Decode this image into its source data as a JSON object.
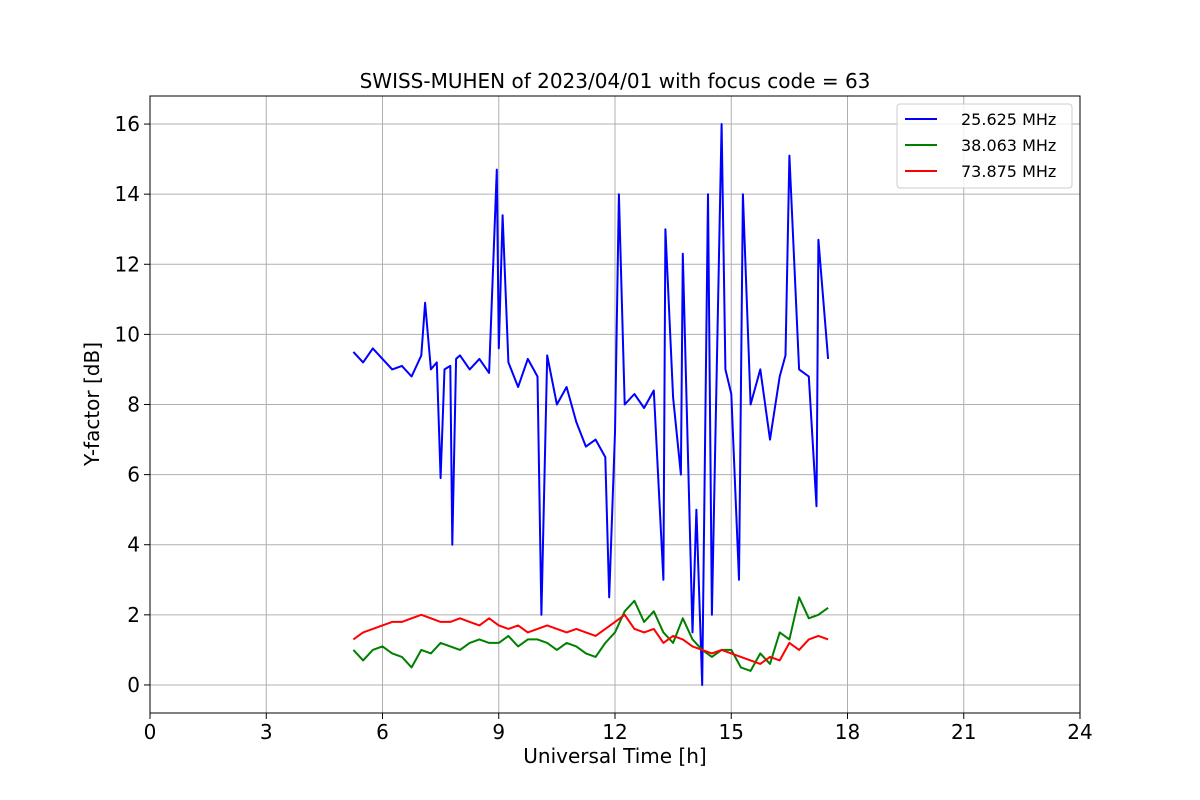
{
  "chart_data": {
    "type": "line",
    "title": "SWISS-MUHEN of 2023/04/01 with focus code = 63",
    "xlabel": "Universal Time [h]",
    "ylabel": "Y-factor [dB]",
    "xlim": [
      0,
      24
    ],
    "ylim": [
      -0.8,
      16.8
    ],
    "xticks": [
      0,
      3,
      6,
      9,
      12,
      15,
      18,
      21,
      24
    ],
    "yticks": [
      0,
      2,
      4,
      6,
      8,
      10,
      12,
      14,
      16
    ],
    "grid": true,
    "legend_position": "top-right",
    "colors": {
      "s1": "#0000ff",
      "s2": "#008000",
      "s3": "#ff0000"
    },
    "series": [
      {
        "name": "25.625 MHz",
        "color": "#0000ff",
        "x": [
          5.25,
          5.5,
          5.75,
          6.0,
          6.25,
          6.5,
          6.75,
          7.0,
          7.1,
          7.25,
          7.4,
          7.5,
          7.6,
          7.75,
          7.8,
          7.9,
          8.0,
          8.25,
          8.5,
          8.75,
          8.95,
          9.0,
          9.1,
          9.25,
          9.5,
          9.75,
          10.0,
          10.1,
          10.25,
          10.5,
          10.75,
          11.0,
          11.25,
          11.5,
          11.75,
          11.85,
          12.0,
          12.1,
          12.25,
          12.5,
          12.75,
          13.0,
          13.25,
          13.3,
          13.5,
          13.7,
          13.75,
          14.0,
          14.1,
          14.25,
          14.4,
          14.5,
          14.75,
          14.85,
          15.0,
          15.2,
          15.3,
          15.5,
          15.75,
          16.0,
          16.25,
          16.4,
          16.5,
          16.75,
          17.0,
          17.2,
          17.25,
          17.5
        ],
        "y": [
          9.5,
          9.2,
          9.6,
          9.3,
          9.0,
          9.1,
          8.8,
          9.4,
          10.9,
          9.0,
          9.2,
          5.9,
          9.0,
          9.1,
          4.0,
          9.3,
          9.4,
          9.0,
          9.3,
          8.9,
          14.7,
          9.6,
          13.4,
          9.2,
          8.5,
          9.3,
          8.8,
          2.0,
          9.4,
          8.0,
          8.5,
          7.5,
          6.8,
          7.0,
          6.5,
          2.5,
          7.2,
          14.0,
          8.0,
          8.3,
          7.9,
          8.4,
          3.0,
          13.0,
          8.2,
          6.0,
          12.3,
          1.5,
          5.0,
          0.0,
          14.0,
          2.0,
          16.0,
          9.0,
          8.3,
          3.0,
          14.0,
          8.0,
          9.0,
          7.0,
          8.8,
          9.4,
          15.1,
          9.0,
          8.8,
          5.1,
          12.7,
          9.3
        ]
      },
      {
        "name": "38.063 MHz",
        "color": "#008000",
        "x": [
          5.25,
          5.5,
          5.75,
          6.0,
          6.25,
          6.5,
          6.75,
          7.0,
          7.25,
          7.5,
          7.75,
          8.0,
          8.25,
          8.5,
          8.75,
          9.0,
          9.25,
          9.5,
          9.75,
          10.0,
          10.25,
          10.5,
          10.75,
          11.0,
          11.25,
          11.5,
          11.75,
          12.0,
          12.25,
          12.5,
          12.75,
          13.0,
          13.25,
          13.5,
          13.75,
          14.0,
          14.25,
          14.5,
          14.75,
          15.0,
          15.25,
          15.5,
          15.75,
          16.0,
          16.25,
          16.5,
          16.75,
          17.0,
          17.25,
          17.5
        ],
        "y": [
          1.0,
          0.7,
          1.0,
          1.1,
          0.9,
          0.8,
          0.5,
          1.0,
          0.9,
          1.2,
          1.1,
          1.0,
          1.2,
          1.3,
          1.2,
          1.2,
          1.4,
          1.1,
          1.3,
          1.3,
          1.2,
          1.0,
          1.2,
          1.1,
          0.9,
          0.8,
          1.2,
          1.5,
          2.1,
          2.4,
          1.8,
          2.1,
          1.5,
          1.2,
          1.9,
          1.3,
          1.0,
          0.8,
          1.0,
          1.0,
          0.5,
          0.4,
          0.9,
          0.6,
          1.5,
          1.3,
          2.5,
          1.9,
          2.0,
          2.2
        ]
      },
      {
        "name": "73.875 MHz",
        "color": "#ff0000",
        "x": [
          5.25,
          5.5,
          5.75,
          6.0,
          6.25,
          6.5,
          6.75,
          7.0,
          7.25,
          7.5,
          7.75,
          8.0,
          8.25,
          8.5,
          8.75,
          9.0,
          9.25,
          9.5,
          9.75,
          10.0,
          10.25,
          10.5,
          10.75,
          11.0,
          11.25,
          11.5,
          11.75,
          12.0,
          12.25,
          12.5,
          12.75,
          13.0,
          13.25,
          13.5,
          13.75,
          14.0,
          14.25,
          14.5,
          14.75,
          15.0,
          15.25,
          15.5,
          15.75,
          16.0,
          16.25,
          16.5,
          16.75,
          17.0,
          17.25,
          17.5
        ],
        "y": [
          1.3,
          1.5,
          1.6,
          1.7,
          1.8,
          1.8,
          1.9,
          2.0,
          1.9,
          1.8,
          1.8,
          1.9,
          1.8,
          1.7,
          1.9,
          1.7,
          1.6,
          1.7,
          1.5,
          1.6,
          1.7,
          1.6,
          1.5,
          1.6,
          1.5,
          1.4,
          1.6,
          1.8,
          2.0,
          1.6,
          1.5,
          1.6,
          1.2,
          1.4,
          1.3,
          1.1,
          1.0,
          0.9,
          1.0,
          0.9,
          0.8,
          0.7,
          0.6,
          0.8,
          0.7,
          1.2,
          1.0,
          1.3,
          1.4,
          1.3
        ]
      }
    ]
  }
}
